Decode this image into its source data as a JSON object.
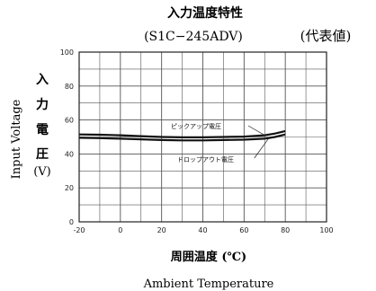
{
  "chart_data": {
    "type": "line",
    "title": "入力温度特性",
    "subtitle": "(S1C−245ADV)",
    "note": "(代表値)",
    "xlabel_ja": "周囲温度 (℃)",
    "xlabel_en": "Ambient Temperature",
    "ylabel_en": "Input Voltage",
    "ylabel_ja_chars": [
      "入",
      "力",
      "電",
      "圧"
    ],
    "ylabel_unit": "(V)",
    "xlim": [
      -20,
      100
    ],
    "ylim": [
      0,
      100
    ],
    "xticks": [
      "-20",
      "0",
      "20",
      "40",
      "60",
      "80",
      "100"
    ],
    "yticks": [
      "0",
      "20",
      "40",
      "60",
      "80",
      "100"
    ],
    "grid": true,
    "series": [
      {
        "name": "ピックアップ電圧",
        "x": [
          -20,
          -10,
          0,
          10,
          20,
          30,
          40,
          50,
          60,
          70,
          75,
          80
        ],
        "y": [
          51.5,
          51.3,
          51,
          50.5,
          50,
          49.8,
          49.8,
          50,
          50.2,
          51,
          52,
          53.5
        ]
      },
      {
        "name": "ドロップアウト電圧",
        "x": [
          -20,
          -10,
          0,
          10,
          20,
          30,
          40,
          50,
          60,
          70,
          75,
          80
        ],
        "y": [
          49.5,
          49.3,
          49,
          48.6,
          48.2,
          48,
          48,
          48.2,
          48.4,
          49,
          50,
          51.5
        ]
      }
    ]
  }
}
